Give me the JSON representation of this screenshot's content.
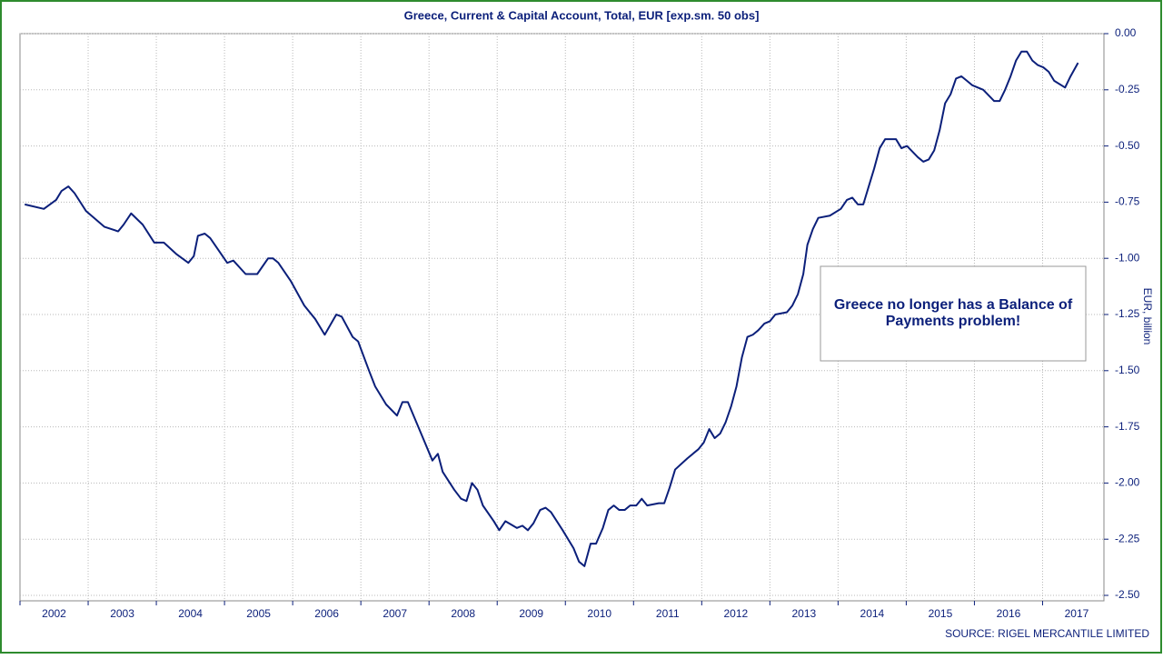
{
  "chart_data": {
    "type": "line",
    "title": "Greece, Current & Capital Account, Total, EUR [exp.sm. 50 obs]",
    "y_axis_label": "EUR, billion",
    "annotation": "Greece no longer has a Balance of Payments problem!",
    "source": "SOURCE: RIGEL MERCANTILE LIMITED",
    "grid": true,
    "xlim": [
      2002,
      2017.9
    ],
    "xticks": [
      2002,
      2003,
      2004,
      2005,
      2006,
      2007,
      2008,
      2009,
      2010,
      2011,
      2012,
      2013,
      2014,
      2015,
      2016,
      2017
    ],
    "ylim": [
      -2.5,
      0
    ],
    "yticks": [
      {
        "value": 0,
        "label": "0.00"
      },
      {
        "value": -0.25,
        "label": "-0.25"
      },
      {
        "value": -0.5,
        "label": "-0.50"
      },
      {
        "value": -0.75,
        "label": "-0.75"
      },
      {
        "value": -1,
        "label": "-1.00"
      },
      {
        "value": -1.25,
        "label": "-1.25"
      },
      {
        "value": -1.5,
        "label": "-1.50"
      },
      {
        "value": -1.75,
        "label": "-1.75"
      },
      {
        "value": -2,
        "label": "-2.00"
      },
      {
        "value": -2.25,
        "label": "-2.25"
      },
      {
        "value": -2.5,
        "label": "-2.50"
      }
    ],
    "series": [
      {
        "color": "#0b1f7a",
        "x": [
          2002.07,
          2002.35,
          2002.53,
          2002.61,
          2002.71,
          2002.8,
          2002.97,
          2003.24,
          2003.44,
          2003.52,
          2003.63,
          2003.8,
          2003.97,
          2004.11,
          2004.29,
          2004.47,
          2004.55,
          2004.61,
          2004.71,
          2004.79,
          2005.04,
          2005.13,
          2005.31,
          2005.48,
          2005.64,
          2005.71,
          2005.79,
          2005.97,
          2006.17,
          2006.33,
          2006.47,
          2006.64,
          2006.72,
          2006.88,
          2006.96,
          2007.12,
          2007.21,
          2007.37,
          2007.53,
          2007.61,
          2007.69,
          2007.87,
          2008.05,
          2008.13,
          2008.2,
          2008.37,
          2008.47,
          2008.55,
          2008.63,
          2008.71,
          2008.79,
          2008.95,
          2009.03,
          2009.12,
          2009.29,
          2009.37,
          2009.45,
          2009.53,
          2009.63,
          2009.71,
          2009.79,
          2009.96,
          2010.12,
          2010.2,
          2010.28,
          2010.37,
          2010.45,
          2010.55,
          2010.63,
          2010.71,
          2010.79,
          2010.87,
          2010.95,
          2011.04,
          2011.12,
          2011.2,
          2011.37,
          2011.45,
          2011.53,
          2011.61,
          2011.79,
          2011.95,
          2012.03,
          2012.11,
          2012.19,
          2012.27,
          2012.35,
          2012.43,
          2012.51,
          2012.59,
          2012.67,
          2012.75,
          2012.83,
          2012.92,
          2013.0,
          2013.08,
          2013.25,
          2013.33,
          2013.41,
          2013.49,
          2013.55,
          2013.63,
          2013.71,
          2013.88,
          2014.04,
          2014.13,
          2014.21,
          2014.29,
          2014.37,
          2014.45,
          2014.53,
          2014.61,
          2014.69,
          2014.85,
          2014.93,
          2015.01,
          2015.17,
          2015.25,
          2015.33,
          2015.41,
          2015.49,
          2015.57,
          2015.65,
          2015.73,
          2015.81,
          2015.89,
          2015.97,
          2016.13,
          2016.29,
          2016.37,
          2016.45,
          2016.53,
          2016.61,
          2016.69,
          2016.77,
          2016.85,
          2016.93,
          2017.01,
          2017.09,
          2017.17,
          2017.33,
          2017.41,
          2017.52
        ],
        "values": [
          -0.76,
          -0.78,
          -0.74,
          -0.7,
          -0.68,
          -0.71,
          -0.79,
          -0.86,
          -0.88,
          -0.85,
          -0.8,
          -0.85,
          -0.93,
          -0.93,
          -0.98,
          -1.02,
          -0.99,
          -0.9,
          -0.89,
          -0.91,
          -1.02,
          -1.01,
          -1.07,
          -1.07,
          -1.0,
          -1.0,
          -1.02,
          -1.1,
          -1.21,
          -1.27,
          -1.34,
          -1.25,
          -1.26,
          -1.35,
          -1.37,
          -1.5,
          -1.57,
          -1.65,
          -1.7,
          -1.64,
          -1.64,
          -1.77,
          -1.9,
          -1.87,
          -1.95,
          -2.03,
          -2.07,
          -2.08,
          -2.0,
          -2.03,
          -2.1,
          -2.17,
          -2.21,
          -2.17,
          -2.2,
          -2.19,
          -2.21,
          -2.18,
          -2.12,
          -2.11,
          -2.13,
          -2.21,
          -2.29,
          -2.35,
          -2.37,
          -2.27,
          -2.27,
          -2.2,
          -2.12,
          -2.1,
          -2.12,
          -2.12,
          -2.1,
          -2.1,
          -2.07,
          -2.1,
          -2.09,
          -2.09,
          -2.02,
          -1.94,
          -1.89,
          -1.85,
          -1.82,
          -1.76,
          -1.8,
          -1.78,
          -1.73,
          -1.66,
          -1.57,
          -1.44,
          -1.35,
          -1.34,
          -1.32,
          -1.29,
          -1.28,
          -1.25,
          -1.24,
          -1.21,
          -1.16,
          -1.07,
          -0.94,
          -0.87,
          -0.82,
          -0.81,
          -0.78,
          -0.74,
          -0.73,
          -0.76,
          -0.76,
          -0.68,
          -0.6,
          -0.51,
          -0.47,
          -0.47,
          -0.51,
          -0.5,
          -0.55,
          -0.57,
          -0.56,
          -0.52,
          -0.43,
          -0.31,
          -0.27,
          -0.2,
          -0.19,
          -0.21,
          -0.23,
          -0.25,
          -0.3,
          -0.3,
          -0.25,
          -0.19,
          -0.12,
          -0.08,
          -0.08,
          -0.12,
          -0.14,
          -0.15,
          -0.17,
          -0.21,
          -0.24,
          -0.19,
          -0.13
        ]
      }
    ]
  }
}
